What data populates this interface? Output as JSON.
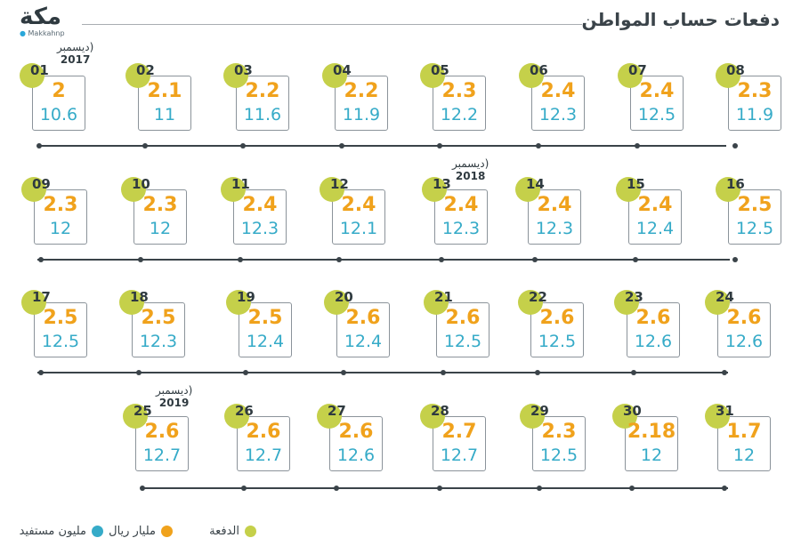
{
  "header": {
    "logo_text": "مكة",
    "logo_handle": "Makkahnp",
    "title": "دفعات حساب المواطن"
  },
  "colors": {
    "payment": "#c5d04a",
    "billion_riyal": "#f0a21c",
    "million_beneficiaries": "#36abc8"
  },
  "payments": [
    {
      "num": "01",
      "amount": "2",
      "beneficiaries": "10.6"
    },
    {
      "num": "02",
      "amount": "2.1",
      "beneficiaries": "11"
    },
    {
      "num": "03",
      "amount": "2.2",
      "beneficiaries": "11.6"
    },
    {
      "num": "04",
      "amount": "2.2",
      "beneficiaries": "11.9"
    },
    {
      "num": "05",
      "amount": "2.3",
      "beneficiaries": "12.2"
    },
    {
      "num": "06",
      "amount": "2.4",
      "beneficiaries": "12.3"
    },
    {
      "num": "07",
      "amount": "2.4",
      "beneficiaries": "12.5"
    },
    {
      "num": "08",
      "amount": "2.3",
      "beneficiaries": "11.9"
    },
    {
      "num": "09",
      "amount": "2.3",
      "beneficiaries": "12"
    },
    {
      "num": "10",
      "amount": "2.3",
      "beneficiaries": "12"
    },
    {
      "num": "11",
      "amount": "2.4",
      "beneficiaries": "12.3"
    },
    {
      "num": "12",
      "amount": "2.4",
      "beneficiaries": "12.1"
    },
    {
      "num": "13",
      "amount": "2.4",
      "beneficiaries": "12.3"
    },
    {
      "num": "14",
      "amount": "2.4",
      "beneficiaries": "12.3"
    },
    {
      "num": "15",
      "amount": "2.4",
      "beneficiaries": "12.4"
    },
    {
      "num": "16",
      "amount": "2.5",
      "beneficiaries": "12.5"
    },
    {
      "num": "17",
      "amount": "2.5",
      "beneficiaries": "12.5"
    },
    {
      "num": "18",
      "amount": "2.5",
      "beneficiaries": "12.3"
    },
    {
      "num": "19",
      "amount": "2.5",
      "beneficiaries": "12.4"
    },
    {
      "num": "20",
      "amount": "2.6",
      "beneficiaries": "12.4"
    },
    {
      "num": "21",
      "amount": "2.6",
      "beneficiaries": "12.5"
    },
    {
      "num": "22",
      "amount": "2.6",
      "beneficiaries": "12.5"
    },
    {
      "num": "23",
      "amount": "2.6",
      "beneficiaries": "12.6"
    },
    {
      "num": "24",
      "amount": "2.6",
      "beneficiaries": "12.6"
    },
    {
      "num": "25",
      "amount": "2.6",
      "beneficiaries": "12.7"
    },
    {
      "num": "26",
      "amount": "2.6",
      "beneficiaries": "12.7"
    },
    {
      "num": "27",
      "amount": "2.6",
      "beneficiaries": "12.6"
    },
    {
      "num": "28",
      "amount": "2.7",
      "beneficiaries": "12.7"
    },
    {
      "num": "29",
      "amount": "2.3",
      "beneficiaries": "12.5"
    },
    {
      "num": "30",
      "amount": "2.18",
      "beneficiaries": "12"
    },
    {
      "num": "31",
      "amount": "1.7",
      "beneficiaries": "12"
    }
  ],
  "month_labels": [
    {
      "month": "(ديسمبر",
      "year": "2017",
      "payment": "01"
    },
    {
      "month": "(ديسمبر",
      "year": "2018",
      "payment": "13"
    },
    {
      "month": "(ديسمبر",
      "year": "2019",
      "payment": "25"
    }
  ],
  "legend": {
    "payment": "الدفعة",
    "billion_riyal": "مليار ريال",
    "million_beneficiaries": "مليون مستفيد"
  }
}
